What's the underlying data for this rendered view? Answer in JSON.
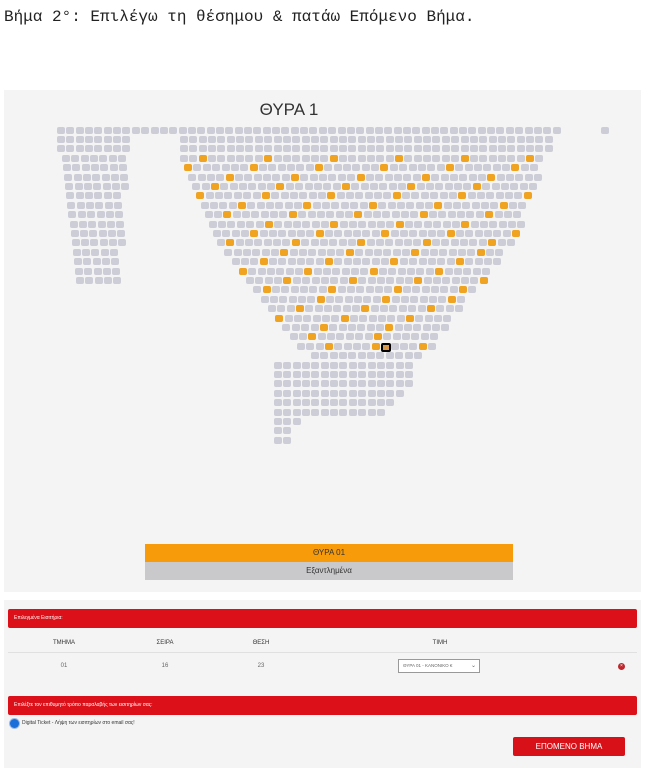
{
  "instruction": "Βήμα 2°: Επιλέγω τη θέσημου & πατάω Επόμενο Βήμα.",
  "seat_map": {
    "title": "ΘΥΡΑ 1",
    "selected_seat": {
      "row": "16",
      "seat": "23"
    },
    "colors": {
      "unavailable": "#cdcdd8",
      "available": "#f0a320",
      "selected_border": "#000000"
    },
    "legend": [
      {
        "label": "ΘΥΡΑ 01",
        "color": "#f79b0a"
      },
      {
        "label": "Εξαντλημένα",
        "color": "#c9c9cc"
      }
    ]
  },
  "selected_tickets": {
    "header": "Επιλεγμένα Εισιτήρια:",
    "columns": [
      "ΤΜΗΜΑ",
      "ΣΕΙΡΑ",
      "ΘΕΣΗ",
      "ΤΙΜΗ"
    ],
    "rows": [
      {
        "section": "01",
        "row": "16",
        "seat": "23",
        "price": "ΘΥΡΑ 01 - ΚΑΝΟΝΙΚΟ €"
      }
    ]
  },
  "delivery": {
    "header": "Επιλέξτε τον επιθυμητό τρόπο παραλαβής των εισιτηρίων σας:",
    "option": "Digital Ticket - Λήψη των εισιτηρίων στο email σας!",
    "selected": true
  },
  "next_button": "ΕΠΟΜΕΝΟ ΒΗΜΑ",
  "accent_color": "#db1018"
}
